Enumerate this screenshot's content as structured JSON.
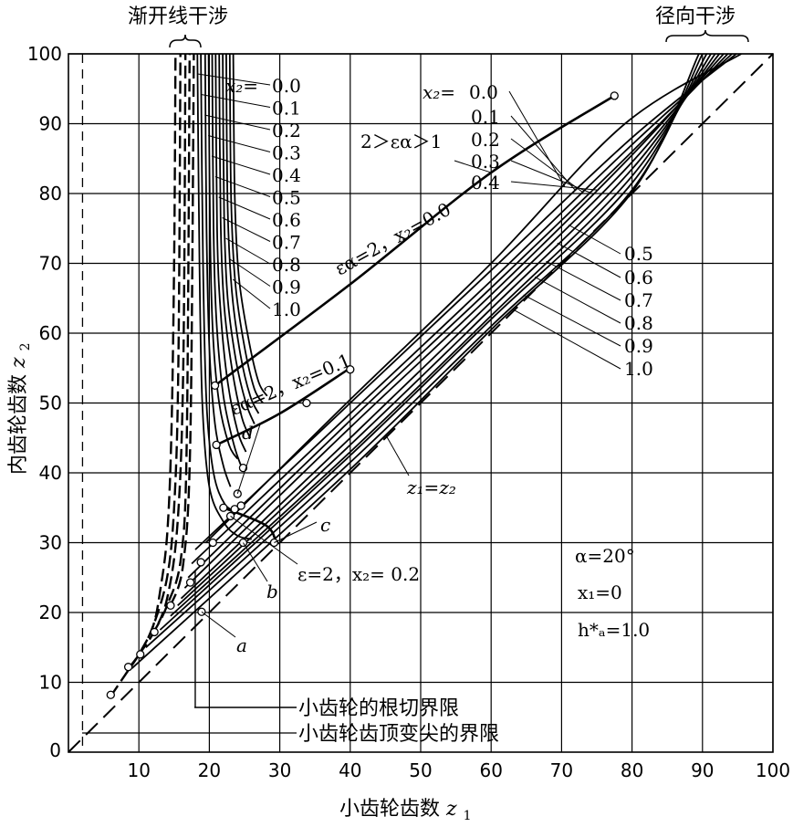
{
  "chart_data": {
    "type": "line",
    "title": "",
    "xlabel": "小齿轮齿数",
    "xlabel_sym": "z",
    "xlabel_sub": "1",
    "ylabel": "内齿轮齿数",
    "ylabel_sym": "z",
    "ylabel_sub": "2",
    "xlim": [
      0,
      100
    ],
    "ylim": [
      0,
      100
    ],
    "x_ticks": [
      10,
      20,
      30,
      40,
      50,
      60,
      70,
      80,
      90,
      100
    ],
    "y_ticks": [
      10,
      20,
      30,
      40,
      50,
      60,
      70,
      80,
      90,
      100
    ],
    "origin_label": "0",
    "grid": true,
    "header_left": "渐开线干涉",
    "header_right": "径向干涉",
    "params": {
      "alpha": "α=20°",
      "x1": "x₁=0",
      "ha": "h*ₐ=1.0"
    },
    "legend": {
      "root_cut": "小齿轮的根切界限",
      "tip_sharp": "小齿轮齿顶变尖的界限"
    },
    "labels": {
      "x2_prefix": "x₂=",
      "diag_z": "z₁=z₂",
      "eps_ineq": "2＞εα＞1",
      "eps_x0": "εα=2，x₂=0.0",
      "eps_x1": "εα=2，x₂=0.1",
      "eps_x2": "ε=2，x₂= 0.2",
      "a": "a",
      "b": "b",
      "c": "c",
      "d": "d"
    },
    "x2_values": [
      "0.0",
      "0.1",
      "0.2",
      "0.3",
      "0.4",
      "0.5",
      "0.6",
      "0.7",
      "0.8",
      "0.9",
      "1.0"
    ],
    "involute_interference_series": [
      {
        "x2": "0.0",
        "points": [
          [
            6,
            8
          ],
          [
            8,
            11
          ],
          [
            10,
            14
          ],
          [
            12,
            18
          ],
          [
            13,
            23
          ],
          [
            14,
            31
          ],
          [
            14.6,
            45
          ],
          [
            15,
            70
          ],
          [
            15.2,
            100
          ]
        ]
      },
      {
        "x2": "0.1",
        "points": [
          [
            8.5,
            12
          ],
          [
            10,
            14
          ],
          [
            12,
            18
          ],
          [
            14,
            25
          ],
          [
            15,
            35
          ],
          [
            15.6,
            55
          ],
          [
            15.9,
            100
          ]
        ]
      },
      {
        "x2": "0.2",
        "points": [
          [
            10,
            14
          ],
          [
            12,
            17
          ],
          [
            14,
            22
          ],
          [
            15.5,
            33
          ],
          [
            16.3,
            55
          ],
          [
            16.6,
            100
          ]
        ]
      },
      {
        "x2": "0.3",
        "points": [
          [
            12,
            17
          ],
          [
            14,
            21
          ],
          [
            16,
            28
          ],
          [
            16.8,
            45
          ],
          [
            17.2,
            100
          ]
        ]
      },
      {
        "x2": "0.4",
        "points": [
          [
            14.5,
            21
          ],
          [
            16.3,
            27
          ],
          [
            17.3,
            45
          ],
          [
            17.8,
            100
          ]
        ]
      }
    ],
    "root_cut_limit_series": [
      {
        "x2": "0.0",
        "points": [
          [
            18.3,
            100
          ],
          [
            18.6,
            70
          ],
          [
            19,
            50
          ],
          [
            20,
            38
          ],
          [
            22,
            33
          ],
          [
            24,
            31
          ],
          [
            26,
            30.5
          ]
        ]
      },
      {
        "x2": "0.1",
        "points": [
          [
            18.8,
            100
          ],
          [
            19.1,
            70
          ],
          [
            19.6,
            50
          ],
          [
            20.6,
            40
          ],
          [
            22.2,
            35.5
          ],
          [
            24,
            34.5
          ]
        ]
      },
      {
        "x2": "0.2",
        "points": [
          [
            19.4,
            100
          ],
          [
            19.6,
            75
          ],
          [
            20,
            58
          ],
          [
            20.8,
            47
          ],
          [
            22,
            41
          ],
          [
            23,
            38
          ]
        ]
      },
      {
        "x2": "0.3",
        "points": [
          [
            19.9,
            100
          ],
          [
            20.1,
            75
          ],
          [
            20.5,
            60
          ],
          [
            21.4,
            50
          ],
          [
            22.8,
            44
          ],
          [
            24,
            42
          ]
        ]
      },
      {
        "x2": "0.4",
        "points": [
          [
            20.4,
            100
          ],
          [
            20.6,
            75
          ],
          [
            21,
            62
          ],
          [
            22,
            51
          ],
          [
            23.5,
            44
          ],
          [
            24.7,
            40.5
          ]
        ]
      },
      {
        "x2": "0.5",
        "points": [
          [
            20.9,
            100
          ],
          [
            21.1,
            75
          ],
          [
            21.6,
            63
          ],
          [
            22.6,
            53
          ],
          [
            24,
            46
          ],
          [
            25.2,
            43
          ]
        ]
      },
      {
        "x2": "0.6",
        "points": [
          [
            21.4,
            100
          ],
          [
            21.6,
            76
          ],
          [
            22.1,
            64
          ],
          [
            23.2,
            55
          ],
          [
            24.6,
            48
          ],
          [
            25.8,
            45
          ]
        ]
      },
      {
        "x2": "0.7",
        "points": [
          [
            21.9,
            100
          ],
          [
            22.1,
            77
          ],
          [
            22.6,
            65
          ],
          [
            23.8,
            56
          ],
          [
            25.2,
            50
          ],
          [
            26.4,
            47
          ]
        ]
      },
      {
        "x2": "0.8",
        "points": [
          [
            22.4,
            100
          ],
          [
            22.6,
            78
          ],
          [
            23.2,
            66
          ],
          [
            24.4,
            57
          ],
          [
            25.8,
            51
          ],
          [
            27,
            48.5
          ]
        ]
      },
      {
        "x2": "0.9",
        "points": [
          [
            22.9,
            100
          ],
          [
            23.1,
            79
          ],
          [
            23.7,
            67
          ],
          [
            25,
            58
          ],
          [
            26.4,
            52
          ],
          [
            27.6,
            50
          ]
        ]
      },
      {
        "x2": "1.0",
        "points": [
          [
            23.4,
            100
          ],
          [
            23.6,
            80
          ],
          [
            24.2,
            68
          ],
          [
            25.6,
            59
          ],
          [
            27,
            53
          ],
          [
            28.2,
            51
          ]
        ]
      }
    ],
    "radial_interference_series": [
      {
        "x2": "0.0",
        "points": [
          [
            19.5,
            30
          ],
          [
            39.5,
            50
          ],
          [
            60,
            70
          ],
          [
            79,
            90
          ],
          [
            95.5,
            100
          ]
        ]
      },
      {
        "x2": "0.1",
        "points": [
          [
            18,
            29
          ],
          [
            40,
            50
          ],
          [
            60,
            69
          ],
          [
            80,
            88
          ],
          [
            94.8,
            100
          ]
        ]
      },
      {
        "x2": "0.2",
        "points": [
          [
            17.5,
            27
          ],
          [
            40,
            48.5
          ],
          [
            60,
            67.5
          ],
          [
            80,
            87
          ],
          [
            94.2,
            100
          ]
        ]
      },
      {
        "x2": "0.3",
        "points": [
          [
            17,
            25
          ],
          [
            40,
            47.5
          ],
          [
            60,
            66.5
          ],
          [
            80,
            86
          ],
          [
            93.6,
            100
          ]
        ]
      },
      {
        "x2": "0.4",
        "points": [
          [
            16.5,
            23.5
          ],
          [
            40,
            46.5
          ],
          [
            60,
            65.5
          ],
          [
            80,
            85.5
          ],
          [
            93,
            100
          ]
        ]
      },
      {
        "x2": "0.5",
        "points": [
          [
            16,
            22
          ],
          [
            40,
            45
          ],
          [
            60,
            64.5
          ],
          [
            80,
            84.5
          ],
          [
            92.4,
            100
          ]
        ]
      },
      {
        "x2": "0.6",
        "points": [
          [
            15.5,
            21
          ],
          [
            40,
            44
          ],
          [
            60,
            63.5
          ],
          [
            80,
            83.5
          ],
          [
            91.8,
            100
          ]
        ]
      },
      {
        "x2": "0.7",
        "points": [
          [
            14.5,
            19.5
          ],
          [
            40,
            43
          ],
          [
            60,
            62.5
          ],
          [
            80,
            82.5
          ],
          [
            91.2,
            100
          ]
        ]
      },
      {
        "x2": "0.8",
        "points": [
          [
            13,
            17.5
          ],
          [
            40,
            42.5
          ],
          [
            60,
            62
          ],
          [
            80,
            81.5
          ],
          [
            90.6,
            100
          ]
        ]
      },
      {
        "x2": "0.9",
        "points": [
          [
            11,
            15
          ],
          [
            40,
            41.5
          ],
          [
            60,
            61
          ],
          [
            80,
            80.5
          ],
          [
            90,
            100
          ]
        ]
      },
      {
        "x2": "1.0",
        "points": [
          [
            9,
            12
          ],
          [
            40,
            40.5
          ],
          [
            60,
            60.5
          ],
          [
            80,
            80.2
          ],
          [
            89.5,
            100
          ]
        ]
      }
    ],
    "eps2_series": [
      {
        "name": "εα=2, x₂=0.0",
        "points": [
          [
            20.8,
            52.5
          ],
          [
            40,
            67
          ],
          [
            60,
            83
          ],
          [
            77.5,
            94
          ]
        ]
      },
      {
        "name": "εα=2, x₂=0.1",
        "points": [
          [
            21,
            44
          ],
          [
            30,
            48.5
          ],
          [
            40,
            55
          ]
        ]
      },
      {
        "name": "ε=2, x₂=0.2",
        "points": [
          [
            22,
            35
          ],
          [
            28,
            32.5
          ],
          [
            29.5,
            30
          ]
        ]
      }
    ],
    "marked_points": [
      [
        6,
        8.2
      ],
      [
        8.5,
        12.2
      ],
      [
        10.2,
        14
      ],
      [
        12.2,
        17.2
      ],
      [
        14.5,
        21
      ],
      [
        17.3,
        24.3
      ],
      [
        18.8,
        27.2
      ],
      [
        20.5,
        30
      ],
      [
        18.9,
        20.1
      ],
      [
        24.8,
        30
      ],
      [
        29.2,
        30
      ],
      [
        20.8,
        52.5
      ],
      [
        21,
        44
      ],
      [
        22,
        35
      ],
      [
        23,
        33.8
      ],
      [
        23.6,
        34.8
      ],
      [
        24,
        37
      ],
      [
        24.5,
        35.3
      ],
      [
        24.8,
        40.7
      ],
      [
        33.8,
        50
      ],
      [
        40,
        54.8
      ],
      [
        77.5,
        94
      ]
    ]
  }
}
